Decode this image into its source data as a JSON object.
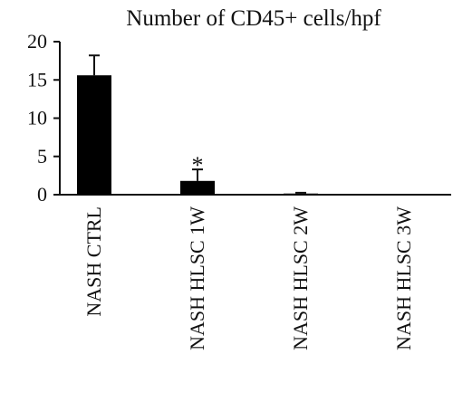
{
  "chart_data": {
    "type": "bar",
    "title": "Number of CD45+ cells/hpf",
    "xlabel": "",
    "ylabel": "",
    "categories": [
      "NASH CTRL",
      "NASH HLSC 1W",
      "NASH HLSC 2W",
      "NASH HLSC 3W"
    ],
    "values": [
      15.6,
      1.8,
      0.15,
      0
    ],
    "errors": [
      2.6,
      1.5,
      0.1,
      0
    ],
    "annotations": [
      "",
      "*",
      "",
      ""
    ],
    "yticks": [
      0,
      5,
      10,
      15,
      20
    ],
    "ylim": [
      0,
      20
    ],
    "grid": false,
    "bar_color": "#000000"
  }
}
